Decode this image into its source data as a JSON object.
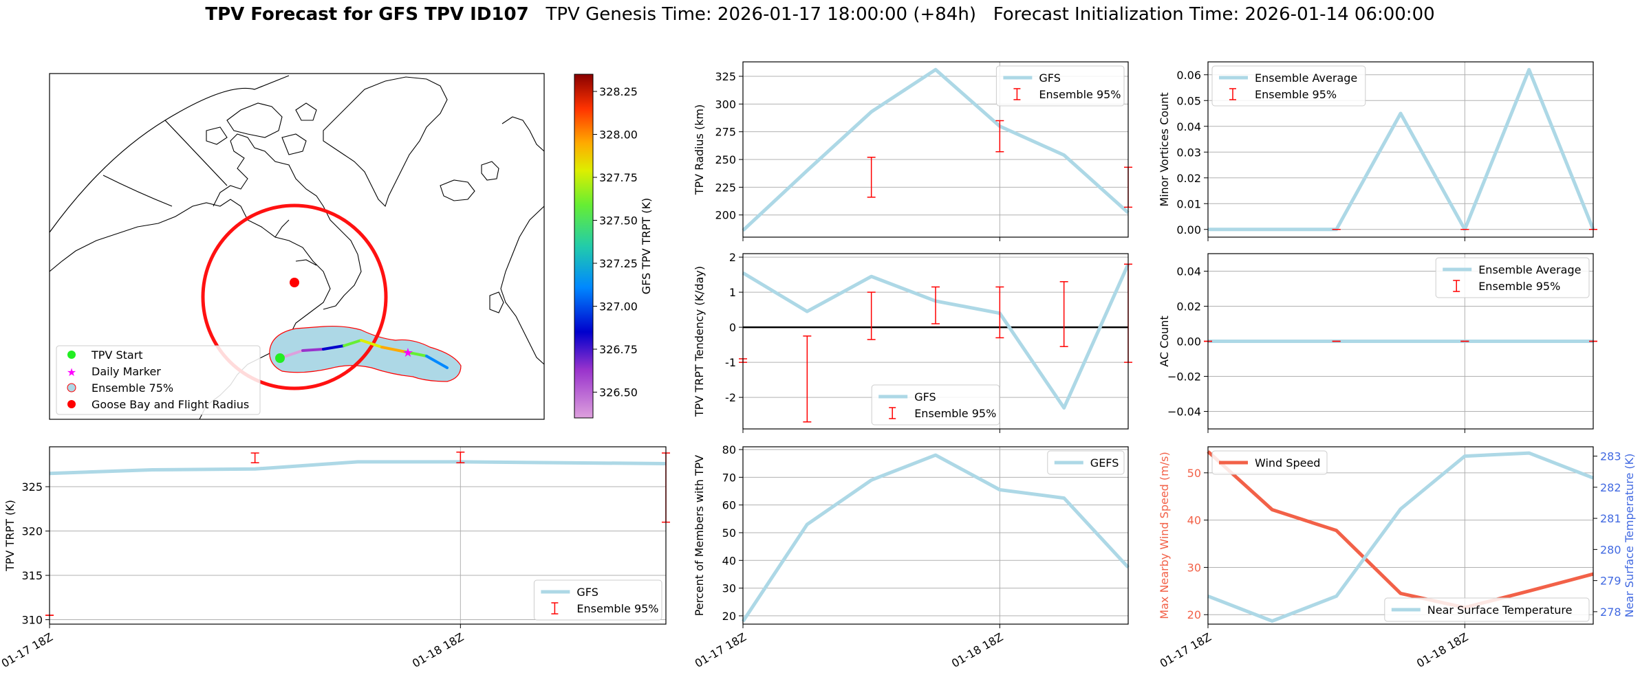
{
  "header": {
    "title_bold": "TPV Forecast for GFS TPV ID107",
    "genesis_label": "TPV Genesis Time: 2026-01-17 18:00:00 (+84h)",
    "init_label": "Forecast Initialization Time: 2026-01-14 06:00:00"
  },
  "map_panel": {
    "colorbar": {
      "label": "GFS TPV TRPT (K)",
      "min": 326.35,
      "max": 328.35,
      "ticks": [
        "326.50",
        "326.75",
        "327.00",
        "327.25",
        "327.50",
        "327.75",
        "328.00",
        "328.25"
      ],
      "tick_values": [
        326.5,
        326.75,
        327.0,
        327.25,
        327.5,
        327.75,
        328.0,
        328.25
      ]
    },
    "legend": [
      {
        "label": "TPV Start",
        "marker": "circle",
        "color": "#22ee22"
      },
      {
        "label": "Daily Marker",
        "marker": "star",
        "color": "#ff00ff"
      },
      {
        "label": "Ensemble 75%",
        "marker": "circle-outline",
        "color": "#add8e6"
      },
      {
        "label": "Goose Bay and Flight Radius",
        "marker": "circle",
        "color": "#ff0000"
      }
    ],
    "track_trpt_values": [
      326.6,
      326.8,
      327.0,
      327.6,
      327.9,
      328.1,
      327.6,
      327.3
    ]
  },
  "chart_data": [
    {
      "id": "radius",
      "type": "line",
      "ylabel": "TPV Radius (km)",
      "ylim": [
        180,
        338
      ],
      "yticks": [
        200,
        225,
        250,
        275,
        300,
        325
      ],
      "x": [
        0,
        1,
        2,
        3,
        4,
        5,
        6
      ],
      "xlim": [
        0,
        6
      ],
      "series": [
        {
          "name": "GFS",
          "color": "#add8e6",
          "values": [
            186,
            240,
            293,
            331,
            280,
            254,
            202
          ]
        }
      ],
      "ensemble_95": [
        {
          "x": 2,
          "low": 216,
          "high": 252
        },
        {
          "x": 4,
          "low": 257,
          "high": 285
        },
        {
          "x": 6,
          "low": 207,
          "high": 243
        }
      ],
      "legend": [
        "GFS",
        "Ensemble 95%"
      ],
      "legend_position": "top-right"
    },
    {
      "id": "minor",
      "type": "line",
      "ylabel": "Minor Vortices Count",
      "ylim": [
        -0.003,
        0.065
      ],
      "yticks": [
        0.0,
        0.01,
        0.02,
        0.03,
        0.04,
        0.05,
        0.06
      ],
      "ytick_labels": [
        "0.00",
        "0.01",
        "0.02",
        "0.03",
        "0.04",
        "0.05",
        "0.06"
      ],
      "x": [
        0,
        1,
        2,
        3,
        4,
        5,
        6
      ],
      "xlim": [
        0,
        6
      ],
      "series": [
        {
          "name": "Ensemble Average",
          "color": "#add8e6",
          "values": [
            0,
            0,
            0,
            0.045,
            0,
            0.062,
            0
          ]
        }
      ],
      "ensemble_95": [
        {
          "x": 2,
          "low": 0,
          "high": 0
        },
        {
          "x": 4,
          "low": 0,
          "high": 0
        },
        {
          "x": 6,
          "low": 0,
          "high": 0
        }
      ],
      "legend": [
        "Ensemble Average",
        "Ensemble 95%"
      ],
      "legend_position": "top-left"
    },
    {
      "id": "tendency",
      "type": "line",
      "ylabel": "TPV TRPT Tendency (K/day)",
      "ylim": [
        -2.9,
        2.1
      ],
      "yticks": [
        -2,
        -1,
        0,
        1,
        2
      ],
      "x": [
        0,
        1,
        2,
        3,
        4,
        5,
        6
      ],
      "xlim": [
        0,
        6
      ],
      "zero_line": true,
      "series": [
        {
          "name": "GFS",
          "color": "#add8e6",
          "values": [
            1.55,
            0.45,
            1.45,
            0.75,
            0.4,
            -2.3,
            1.8
          ]
        }
      ],
      "ensemble_95": [
        {
          "x": 0,
          "low": -1.0,
          "high": -0.9
        },
        {
          "x": 1,
          "low": -2.7,
          "high": -0.25
        },
        {
          "x": 2,
          "low": -0.35,
          "high": 1.0
        },
        {
          "x": 3,
          "low": 0.1,
          "high": 1.15
        },
        {
          "x": 4,
          "low": -0.3,
          "high": 1.15
        },
        {
          "x": 5,
          "low": -0.55,
          "high": 1.3
        },
        {
          "x": 6,
          "low": -1.0,
          "high": 1.8
        }
      ],
      "legend": [
        "GFS",
        "Ensemble 95%"
      ],
      "legend_position": "bottom-center"
    },
    {
      "id": "ac",
      "type": "line",
      "ylabel": "AC Count",
      "ylim": [
        -0.05,
        0.05
      ],
      "yticks": [
        -0.04,
        -0.02,
        0.0,
        0.02,
        0.04
      ],
      "ytick_labels": [
        "−0.04",
        "−0.02",
        "0.00",
        "0.02",
        "0.04"
      ],
      "x": [
        0,
        1,
        2,
        3,
        4,
        5,
        6
      ],
      "xlim": [
        0,
        6
      ],
      "series": [
        {
          "name": "Ensemble Average",
          "color": "#add8e6",
          "values": [
            0,
            0,
            0,
            0,
            0,
            0,
            0
          ]
        }
      ],
      "ensemble_95": [
        {
          "x": 0,
          "low": 0,
          "high": 0
        },
        {
          "x": 2,
          "low": 0,
          "high": 0
        },
        {
          "x": 4,
          "low": 0,
          "high": 0
        },
        {
          "x": 6,
          "low": 0,
          "high": 0
        }
      ],
      "legend": [
        "Ensemble Average",
        "Ensemble 95%"
      ],
      "legend_position": "top-right"
    },
    {
      "id": "trpt",
      "type": "line",
      "ylabel": "TPV TRPT (K)",
      "ylim": [
        309.5,
        329.5
      ],
      "yticks": [
        310,
        315,
        320,
        325
      ],
      "x": [
        0,
        1,
        2,
        3,
        4,
        5,
        6
      ],
      "xlim": [
        0,
        6
      ],
      "series": [
        {
          "name": "GFS",
          "color": "#add8e6",
          "values": [
            326.5,
            326.9,
            327.0,
            327.8,
            327.8,
            327.7,
            327.6
          ]
        }
      ],
      "ensemble_95": [
        {
          "x": 0,
          "low": 310.5,
          "high": 310.5
        },
        {
          "x": 2,
          "low": 327.7,
          "high": 328.8
        },
        {
          "x": 4,
          "low": 327.7,
          "high": 328.9
        },
        {
          "x": 6,
          "low": 321.0,
          "high": 328.8
        }
      ],
      "legend": [
        "GFS",
        "Ensemble 95%"
      ],
      "legend_position": "bottom-right"
    },
    {
      "id": "percent",
      "type": "line",
      "ylabel": "Percent of Members with TPV",
      "ylim": [
        17,
        81
      ],
      "yticks": [
        20,
        30,
        40,
        50,
        60,
        70,
        80
      ],
      "x": [
        0,
        1,
        2,
        3,
        4,
        5,
        6
      ],
      "xlim": [
        0,
        6
      ],
      "series": [
        {
          "name": "GEFS",
          "color": "#add8e6",
          "values": [
            18,
            53,
            69,
            78,
            65.5,
            62.5,
            37.5
          ]
        }
      ],
      "legend": [
        "GEFS"
      ],
      "legend_position": "top-right"
    },
    {
      "id": "wind",
      "type": "line",
      "ylabel": "Max Nearby Wind Speed (m/s)",
      "ylabel_right": "Near Surface Temperature (K)",
      "ylim": [
        18,
        55.5
      ],
      "yticks": [
        20,
        30,
        40,
        50
      ],
      "ylim_right": [
        277.6,
        283.3
      ],
      "yticks_right": [
        278,
        279,
        280,
        281,
        282,
        283
      ],
      "x": [
        0,
        1,
        2,
        3,
        4,
        5,
        6
      ],
      "xlim": [
        0,
        6
      ],
      "series": [
        {
          "name": "Wind Speed",
          "axis": "left",
          "color": "#f26148",
          "values": [
            54.5,
            42.2,
            37.8,
            24.5,
            21.5,
            25.0,
            28.6
          ]
        },
        {
          "name": "Near Surface Temperature",
          "axis": "right",
          "color": "#add8e6",
          "values": [
            278.5,
            277.7,
            278.5,
            281.3,
            283.0,
            283.1,
            282.3
          ]
        }
      ],
      "legend_left": [
        "Wind Speed"
      ],
      "legend_right": [
        "Near Surface Temperature"
      ]
    }
  ],
  "x_axis": {
    "tick_labels": [
      "01-17 18Z",
      "01-18 18Z"
    ],
    "tick_x": [
      0,
      4
    ]
  }
}
